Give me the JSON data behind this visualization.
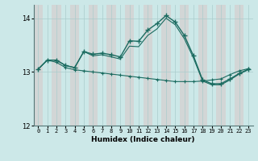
{
  "xlabel": "Humidex (Indice chaleur)",
  "bg_color": "#cce8e8",
  "col_band_color": "#d8c8c8",
  "line_color": "#1a6b60",
  "xlim": [
    -0.5,
    23.5
  ],
  "ylim": [
    12.0,
    14.25
  ],
  "yticks": [
    12,
    13,
    14
  ],
  "xticks": [
    0,
    1,
    2,
    3,
    4,
    5,
    6,
    7,
    8,
    9,
    10,
    11,
    12,
    13,
    14,
    15,
    16,
    17,
    18,
    19,
    20,
    21,
    22,
    23
  ],
  "line1_x": [
    0,
    1,
    2,
    3,
    4,
    5,
    6,
    7,
    8,
    9,
    10,
    11,
    12,
    13,
    14,
    15,
    16,
    17,
    18,
    19,
    20,
    21,
    22,
    23
  ],
  "line1_y": [
    13.05,
    13.22,
    13.22,
    13.12,
    13.08,
    13.38,
    13.33,
    13.35,
    13.32,
    13.28,
    13.58,
    13.57,
    13.78,
    13.9,
    14.05,
    13.93,
    13.68,
    13.3,
    12.85,
    12.78,
    12.78,
    12.87,
    12.97,
    13.05
  ],
  "line2_x": [
    0,
    1,
    2,
    3,
    4,
    5,
    6,
    7,
    8,
    9,
    10,
    11,
    12,
    13,
    14,
    15,
    16,
    17,
    18,
    19,
    20,
    21,
    22,
    23
  ],
  "line2_y": [
    13.05,
    13.22,
    13.22,
    13.12,
    13.08,
    13.38,
    13.3,
    13.32,
    13.28,
    13.24,
    13.48,
    13.47,
    13.68,
    13.8,
    14.0,
    13.88,
    13.62,
    13.26,
    12.83,
    12.76,
    12.76,
    12.85,
    12.96,
    13.04
  ],
  "line3_x": [
    0,
    1,
    2,
    3,
    4,
    5,
    6,
    7,
    8,
    9,
    10,
    11,
    12,
    13,
    14,
    15,
    16,
    17,
    18,
    19,
    20,
    21,
    22,
    23
  ],
  "line3_y": [
    13.05,
    13.22,
    13.18,
    13.08,
    13.04,
    13.02,
    13.0,
    12.98,
    12.96,
    12.94,
    12.92,
    12.9,
    12.88,
    12.86,
    12.84,
    12.82,
    12.82,
    12.82,
    12.83,
    12.85,
    12.87,
    12.95,
    13.02,
    13.06
  ]
}
